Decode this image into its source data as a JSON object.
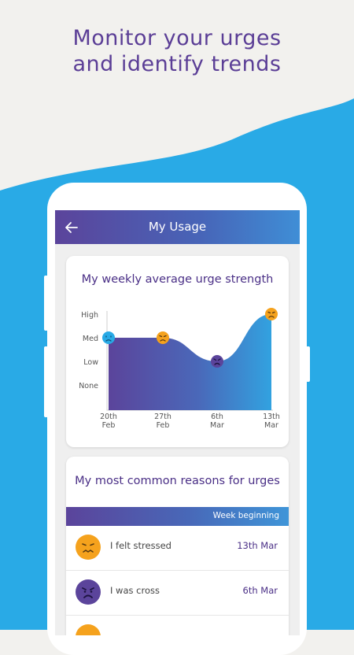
{
  "headline": {
    "line1": "Monitor your urges",
    "line2": "and identify trends"
  },
  "colors": {
    "headline": "#5b3e96",
    "wave": "#29aae6",
    "accent_purple": "#5b449b",
    "orange": "#f5a21d"
  },
  "appbar": {
    "title": "My Usage",
    "back_icon": "back-arrow-icon"
  },
  "chart_card": {
    "title": "My weekly average urge strength"
  },
  "chart_data": {
    "type": "area",
    "title": "My weekly average urge strength",
    "y_levels": [
      "None",
      "Low",
      "Med",
      "High"
    ],
    "x": [
      {
        "line1": "20th",
        "line2": "Feb"
      },
      {
        "line1": "27th",
        "line2": "Feb"
      },
      {
        "line1": "6th",
        "line2": "Mar"
      },
      {
        "line1": "13th",
        "line2": "Mar"
      }
    ],
    "values": [
      2,
      2,
      1,
      3
    ],
    "markers": [
      {
        "face": "sad-face-icon",
        "color": "#29aae6"
      },
      {
        "face": "frown-face-icon",
        "color": "#f5a21d"
      },
      {
        "face": "cross-face-icon",
        "color": "#5b449b"
      },
      {
        "face": "frown-face-icon",
        "color": "#f5a21d"
      }
    ],
    "ylim": [
      0,
      3
    ]
  },
  "reasons_card": {
    "title": "My most common reasons for urges",
    "week_label": "Week beginning",
    "items": [
      {
        "text": "I felt stressed",
        "date": "13th Mar",
        "face": "stressed-face-icon",
        "color": "#f5a21d"
      },
      {
        "text": "I was cross",
        "date": "6th Mar",
        "face": "cross-face-icon",
        "color": "#5b449b"
      }
    ]
  }
}
